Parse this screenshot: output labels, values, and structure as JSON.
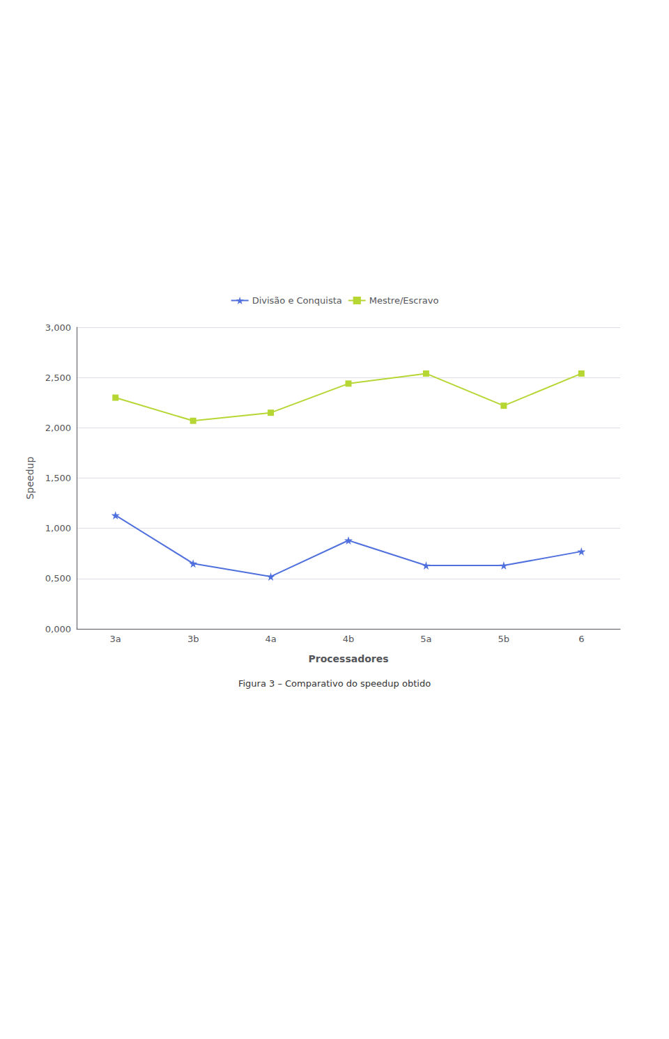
{
  "chart_data": {
    "type": "line",
    "categories": [
      "3a",
      "3b",
      "4a",
      "4b",
      "5a",
      "5b",
      "6"
    ],
    "series": [
      {
        "name": "Divisão e Conquista",
        "values": [
          1.13,
          0.65,
          0.52,
          0.88,
          0.63,
          0.63,
          0.77
        ],
        "marker": "star"
      },
      {
        "name": "Mestre/Escravo",
        "values": [
          2.3,
          2.07,
          2.15,
          2.44,
          2.54,
          2.22,
          2.54
        ],
        "marker": "square"
      }
    ],
    "xlabel": "Processadores",
    "ylabel": "Speedup",
    "ylim": [
      0.0,
      3.0
    ],
    "yticks": [
      {
        "value": 0.0,
        "label": "0,000"
      },
      {
        "value": 0.5,
        "label": "0,500"
      },
      {
        "value": 1.0,
        "label": "1,000"
      },
      {
        "value": 1.5,
        "label": "1,500"
      },
      {
        "value": 2.0,
        "label": "2,000"
      },
      {
        "value": 2.5,
        "label": "2,500"
      },
      {
        "value": 3.0,
        "label": "3,000"
      }
    ],
    "grid": true,
    "legend": "top",
    "annotations": [
      "Figura 3 – Comparativo do speedup obtido"
    ]
  }
}
